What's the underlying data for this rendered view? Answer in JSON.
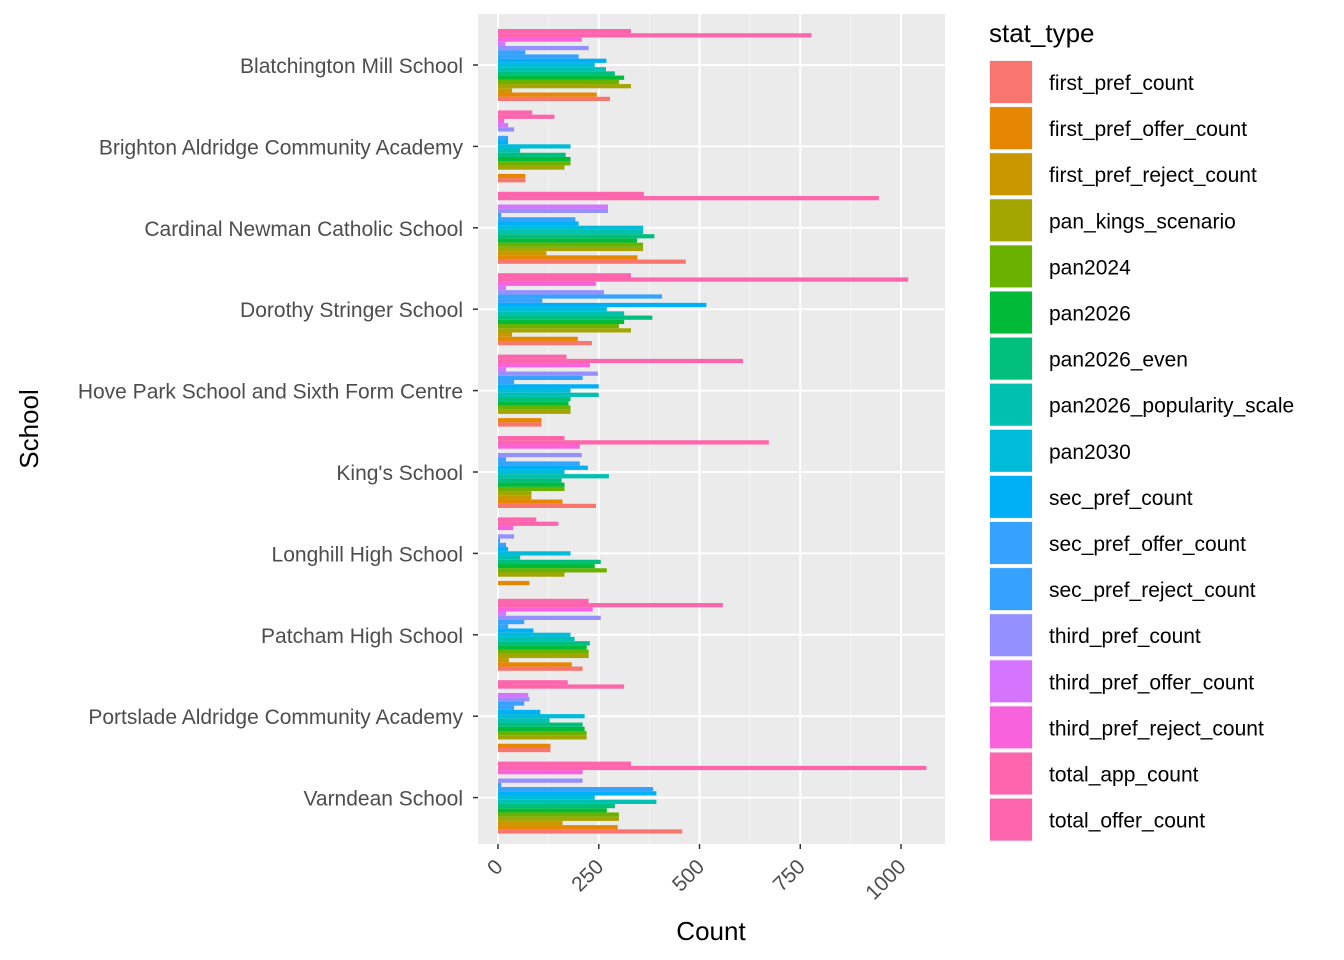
{
  "chart_data": {
    "type": "bar",
    "orientation": "horizontal",
    "xlabel": "Count",
    "ylabel": "School",
    "xlim": [
      -70,
      1100
    ],
    "xticks": [
      0,
      250,
      500,
      750,
      1000
    ],
    "grid": true,
    "legend_title": "stat_type",
    "legend_position": "right",
    "categories": [
      "Blatchington Mill School",
      "Brighton Aldridge Community Academy",
      "Cardinal Newman Catholic School",
      "Dorothy Stringer School",
      "Hove Park School and Sixth Form Centre",
      "King's School",
      "Longhill High School",
      "Patcham High School",
      "Portslade Aldridge Community Academy",
      "Varndean School"
    ],
    "series": [
      {
        "name": "first_pref_count",
        "color": "#F8766D",
        "values": [
          278,
          68,
          466,
          233,
          108,
          243,
          0,
          210,
          130,
          457
        ]
      },
      {
        "name": "first_pref_offer_count",
        "color": "#E58700",
        "values": [
          245,
          68,
          346,
          198,
          108,
          160,
          78,
          183,
          130,
          297
        ]
      },
      {
        "name": "first_pref_reject_count",
        "color": "#C99800",
        "values": [
          35,
          0,
          120,
          35,
          0,
          83,
          0,
          27,
          0,
          160
        ]
      },
      {
        "name": "pan_kings_scenario",
        "color": "#A3A500",
        "values": [
          330,
          165,
          360,
          330,
          180,
          83,
          165,
          225,
          220,
          300
        ]
      },
      {
        "name": "pan2024",
        "color": "#6BB100",
        "values": [
          300,
          180,
          360,
          300,
          180,
          165,
          270,
          225,
          220,
          300
        ]
      },
      {
        "name": "pan2026",
        "color": "#00BA38",
        "values": [
          313,
          180,
          345,
          313,
          175,
          165,
          240,
          220,
          215,
          270
        ]
      },
      {
        "name": "pan2026_even",
        "color": "#00BF7D",
        "values": [
          290,
          168,
          388,
          383,
          180,
          158,
          255,
          228,
          210,
          290
        ]
      },
      {
        "name": "pan2026_popularity_scale",
        "color": "#00C0AF",
        "values": [
          268,
          55,
          360,
          313,
          250,
          275,
          55,
          190,
          128,
          393
        ]
      },
      {
        "name": "pan2030",
        "color": "#00BCD8",
        "values": [
          240,
          180,
          360,
          270,
          180,
          165,
          180,
          180,
          215,
          240
        ]
      },
      {
        "name": "sec_pref_count",
        "color": "#00B0F6",
        "values": [
          269,
          25,
          200,
          517,
          250,
          223,
          25,
          88,
          105,
          393
        ]
      },
      {
        "name": "sec_pref_offer_count",
        "color": "#35A2FF",
        "values": [
          200,
          25,
          192,
          110,
          40,
          203,
          20,
          25,
          40,
          385
        ]
      },
      {
        "name": "sec_pref_reject_count",
        "color": "#35A2FF",
        "values": [
          68,
          0,
          8,
          407,
          210,
          20,
          5,
          65,
          65,
          8
        ]
      },
      {
        "name": "third_pref_count",
        "color": "#9590FF",
        "values": [
          225,
          40,
          273,
          263,
          248,
          208,
          40,
          255,
          78,
          210
        ]
      },
      {
        "name": "third_pref_offer_count",
        "color": "#D575FE",
        "values": [
          18,
          25,
          273,
          20,
          20,
          0,
          0,
          20,
          75,
          0
        ]
      },
      {
        "name": "third_pref_reject_count",
        "color": "#F962DD",
        "values": [
          208,
          15,
          0,
          243,
          228,
          203,
          38,
          235,
          0,
          210
        ]
      },
      {
        "name": "total_app_count",
        "color": "#FF65AC",
        "values": [
          778,
          140,
          945,
          1018,
          608,
          672,
          150,
          558,
          313,
          1063
        ]
      },
      {
        "name": "total_offer_count",
        "color": "#FF65AC",
        "values": [
          330,
          85,
          362,
          330,
          170,
          165,
          95,
          225,
          173,
          330
        ]
      }
    ]
  }
}
